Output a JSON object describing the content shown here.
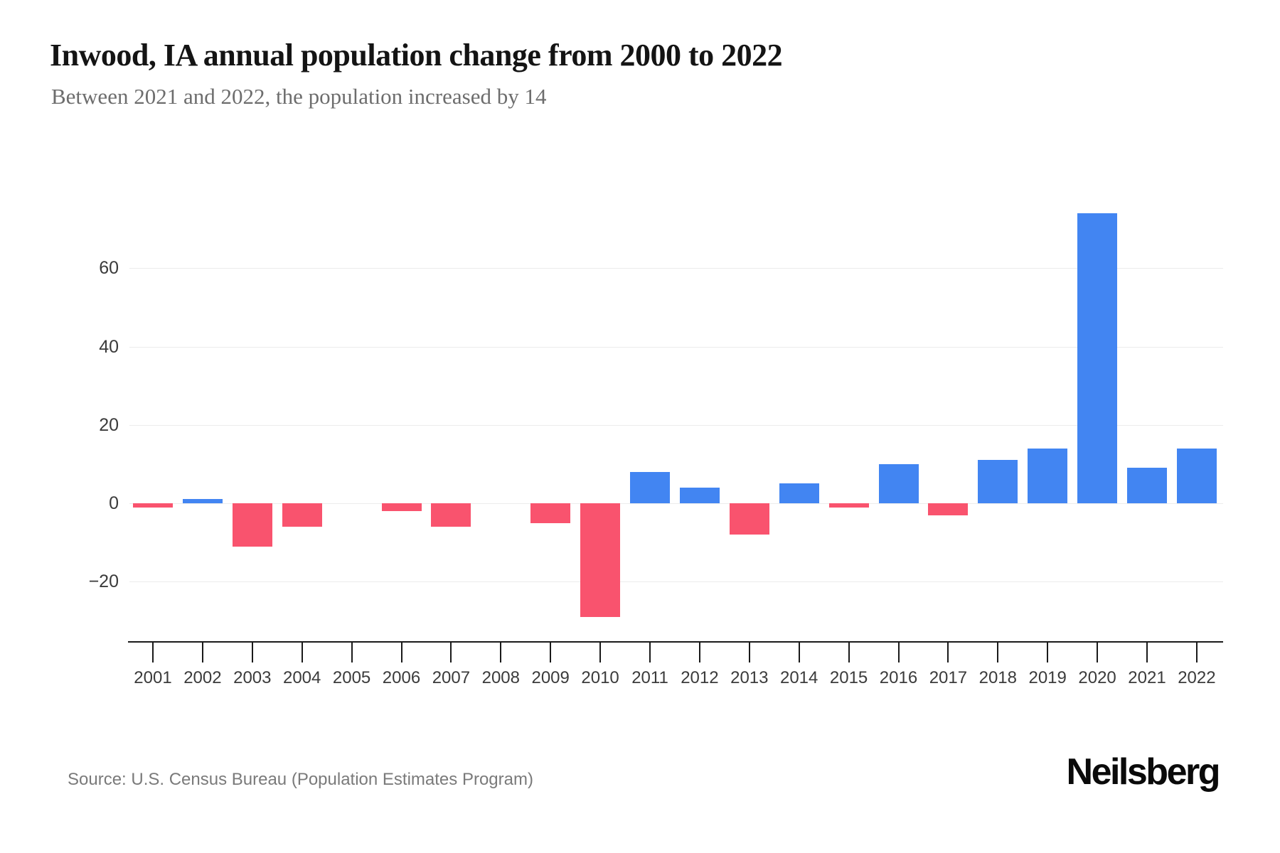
{
  "header": {
    "title": "Inwood, IA annual population change from 2000 to 2022",
    "subtitle": "Between 2021 and 2022, the population increased by 14"
  },
  "footer": {
    "source": "Source: U.S. Census Bureau (Population Estimates Program)",
    "brand": "Neilsberg"
  },
  "colors": {
    "positive_bar": "#4285F2",
    "negative_bar": "#F9536E",
    "gridline": "#ececec",
    "axis": "#1a1a1a",
    "tick_label": "#3b3b3b",
    "title": "#141414",
    "subtitle": "#6d6d6d",
    "source": "#7a7a7a"
  },
  "chart_data": {
    "type": "bar",
    "title": "Inwood, IA annual population change from 2000 to 2022",
    "subtitle": "Between 2021 and 2022, the population increased by 14",
    "categories": [
      "2001",
      "2002",
      "2003",
      "2004",
      "2005",
      "2006",
      "2007",
      "2008",
      "2009",
      "2010",
      "2011",
      "2012",
      "2013",
      "2014",
      "2015",
      "2016",
      "2017",
      "2018",
      "2019",
      "2020",
      "2021",
      "2022"
    ],
    "values": [
      -1,
      1,
      -11,
      -6,
      0,
      -2,
      -6,
      0,
      -5,
      -29,
      8,
      4,
      -8,
      5,
      -1,
      10,
      -3,
      11,
      14,
      74,
      9,
      14
    ],
    "xlabel": "",
    "ylabel": "",
    "yticks": [
      -20,
      0,
      20,
      40,
      60
    ],
    "ylim": [
      -32,
      80
    ],
    "grid": true,
    "legend": false,
    "positive_color": "#4285F2",
    "negative_color": "#F9536E"
  }
}
